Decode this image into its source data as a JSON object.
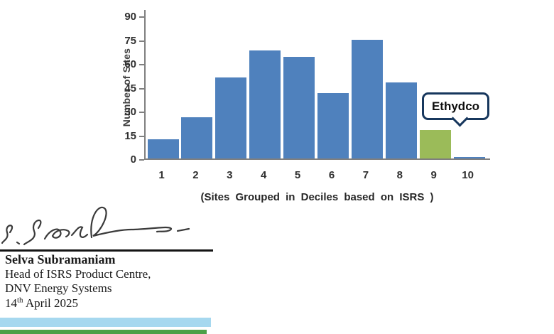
{
  "chart_data": {
    "type": "bar",
    "title": "",
    "ylabel": "Number of Sites",
    "caption": "(Sites Grouped in Deciles based on ISRS )",
    "categories": [
      "1",
      "2",
      "3",
      "4",
      "5",
      "6",
      "7",
      "8",
      "9",
      "10"
    ],
    "values": [
      12,
      26,
      51,
      68,
      64,
      41,
      75,
      48,
      18,
      1
    ],
    "ylim": [
      0,
      90
    ],
    "y_ticks": [
      0,
      15,
      30,
      45,
      60,
      75,
      90
    ],
    "grid": "off",
    "legend": "none",
    "bar_color": "#4f81bd",
    "highlight_index": 8,
    "highlight_color": "#9bbb59",
    "axis_color": "#7f7f7f",
    "annotation": {
      "label": "Ethydco",
      "target_category": "9",
      "border_color": "#17375d"
    }
  },
  "signoff": {
    "name": "Selva Subramaniam",
    "role": "Head of ISRS Product Centre,",
    "org": "DNV Energy Systems",
    "date_day": "14",
    "date_ordinal": "th",
    "date_rest": " April 2025"
  },
  "footer_stripes": {
    "blue": "#a6d8ef",
    "green": "#4ca048"
  }
}
